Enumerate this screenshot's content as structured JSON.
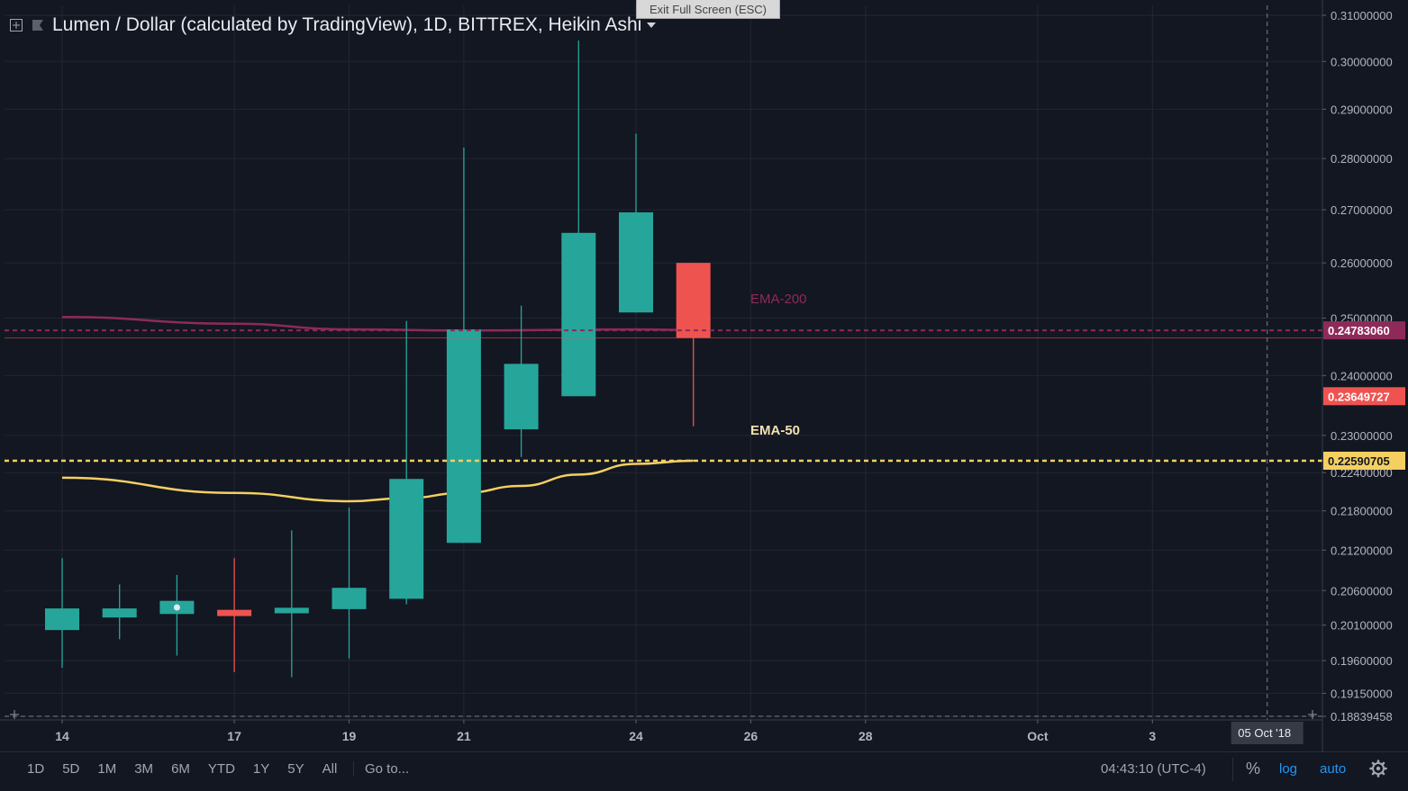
{
  "header": {
    "title": "Lumen / Dollar (calculated by TradingView), 1D, BITTREX, Heikin Ashi"
  },
  "exit_fullscreen_label": "Exit Full Screen (ESC)",
  "chart_data": {
    "type": "candlestick",
    "candles": [
      {
        "date": "2018-09-14",
        "open": 0.2003,
        "high": 0.2108,
        "low": 0.195,
        "close": 0.2034,
        "color": "up"
      },
      {
        "date": "2018-09-15",
        "open": 0.2021,
        "high": 0.2069,
        "low": 0.199,
        "close": 0.2034,
        "color": "up"
      },
      {
        "date": "2018-09-16",
        "open": 0.2026,
        "high": 0.2083,
        "low": 0.1967,
        "close": 0.2045,
        "color": "up"
      },
      {
        "date": "2018-09-17",
        "open": 0.2032,
        "high": 0.2108,
        "low": 0.1944,
        "close": 0.2023,
        "color": "down"
      },
      {
        "date": "2018-09-18",
        "open": 0.2027,
        "high": 0.215,
        "low": 0.1937,
        "close": 0.2035,
        "color": "up"
      },
      {
        "date": "2018-09-19",
        "open": 0.2033,
        "high": 0.2185,
        "low": 0.1963,
        "close": 0.2064,
        "color": "up"
      },
      {
        "date": "2018-09-20",
        "open": 0.2048,
        "high": 0.2495,
        "low": 0.204,
        "close": 0.223,
        "color": "up"
      },
      {
        "date": "2018-09-21",
        "open": 0.2131,
        "high": 0.2822,
        "low": 0.2131,
        "close": 0.248,
        "color": "up"
      },
      {
        "date": "2018-09-22",
        "open": 0.231,
        "high": 0.2522,
        "low": 0.2265,
        "close": 0.242,
        "color": "up"
      },
      {
        "date": "2018-09-23",
        "open": 0.2365,
        "high": 0.3045,
        "low": 0.2365,
        "close": 0.2656,
        "color": "up"
      },
      {
        "date": "2018-09-24",
        "open": 0.251,
        "high": 0.285,
        "low": 0.251,
        "close": 0.2695,
        "color": "up"
      },
      {
        "date": "2018-09-25",
        "open": 0.26,
        "high": 0.26,
        "low": 0.2315,
        "close": 0.2465,
        "color": "down"
      }
    ],
    "ema200": {
      "label": "EMA-200",
      "price_label": "0.24783060",
      "color": "#8e2a5a",
      "points": [
        {
          "date": "2018-09-14",
          "value": 0.2502
        },
        {
          "date": "2018-09-17",
          "value": 0.249
        },
        {
          "date": "2018-09-19",
          "value": 0.248
        },
        {
          "date": "2018-09-21",
          "value": 0.2478
        },
        {
          "date": "2018-09-24",
          "value": 0.248
        },
        {
          "date": "2018-09-25",
          "value": 0.2479
        }
      ]
    },
    "ema50": {
      "label": "EMA-50",
      "price_label": "0.22590705",
      "color": "#f5d061",
      "points": [
        {
          "date": "2018-09-14",
          "value": 0.2232
        },
        {
          "date": "2018-09-17",
          "value": 0.2208
        },
        {
          "date": "2018-09-19",
          "value": 0.2195
        },
        {
          "date": "2018-09-20",
          "value": 0.22
        },
        {
          "date": "2018-09-21",
          "value": 0.2208
        },
        {
          "date": "2018-09-22",
          "value": 0.2219
        },
        {
          "date": "2018-09-23",
          "value": 0.2237
        },
        {
          "date": "2018-09-24",
          "value": 0.2254
        },
        {
          "date": "2018-09-25",
          "value": 0.2259
        }
      ]
    },
    "last_price_label": "0.23649727",
    "last_price_value": 0.2365,
    "y_ticks": [
      "0.31000000",
      "0.30000000",
      "0.29000000",
      "0.28000000",
      "0.27000000",
      "0.26000000",
      "0.25000000",
      "0.24000000",
      "0.23000000",
      "0.22400000",
      "0.21800000",
      "0.21200000",
      "0.20600000",
      "0.20100000",
      "0.19600000",
      "0.19150000",
      "0.18839458"
    ],
    "x_ticks": [
      {
        "label": "14",
        "date": "2018-09-14"
      },
      {
        "label": "17",
        "date": "2018-09-17"
      },
      {
        "label": "19",
        "date": "2018-09-19"
      },
      {
        "label": "21",
        "date": "2018-09-21"
      },
      {
        "label": "24",
        "date": "2018-09-24"
      },
      {
        "label": "26",
        "date": "2018-09-26"
      },
      {
        "label": "28",
        "date": "2018-09-28"
      },
      {
        "label": "Oct",
        "date": "2018-10-01"
      },
      {
        "label": "3",
        "date": "2018-10-03"
      }
    ],
    "crosshair_date_label": "05 Oct '18",
    "crosshair_date": "2018-10-05",
    "scale": "log",
    "grid": true,
    "colors": {
      "up": "#26a69a",
      "down": "#ef5350",
      "background": "#131722",
      "grid": "#262a35"
    }
  },
  "bottom_bar": {
    "ranges": [
      "1D",
      "5D",
      "1M",
      "3M",
      "6M",
      "YTD",
      "1Y",
      "5Y",
      "All"
    ],
    "goto_label": "Go to...",
    "clock": "04:43:10 (UTC-4)",
    "percent_label": "%",
    "log_label": "log",
    "auto_label": "auto"
  }
}
